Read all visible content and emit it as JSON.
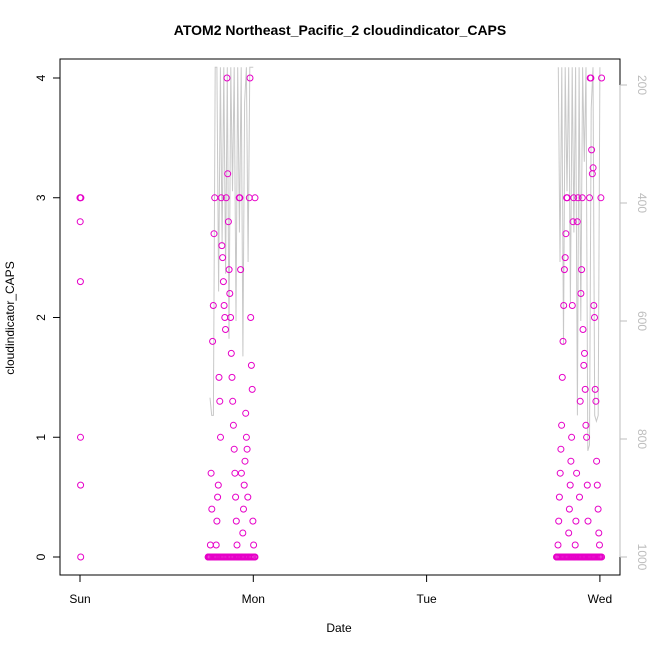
{
  "chart_data": {
    "type": "scatter",
    "title": "ATOM2 Northeast_Pacific_2 cloudindicator_CAPS",
    "xlabel": "Date",
    "ylabel": "cloudindicator_CAPS",
    "x_ticks": [
      "Sun",
      "Mon",
      "Tue",
      "Wed"
    ],
    "y_ticks": [
      "0",
      "1",
      "2",
      "3",
      "4"
    ],
    "y2_ticks": [
      "200",
      "400",
      "600",
      "800",
      "1000"
    ],
    "ylim": [
      0,
      4
    ],
    "y2lim": [
      1030,
      170
    ],
    "series_color": "#e600c8",
    "line_color": "#c8c8c8",
    "grid": false,
    "scatter_clusters": [
      {
        "x_start": 0.0,
        "x_end": 0.005,
        "values": [
          3,
          3,
          2.8,
          2.3,
          1.0,
          0.6,
          0.0,
          3
        ]
      },
      {
        "x_start": 0.74,
        "x_end": 1.01,
        "values": [
          0,
          0,
          0,
          0.1,
          0.7,
          0.4,
          1.8,
          2.1,
          2.7,
          3,
          0,
          0.1,
          0.3,
          0.5,
          0.6,
          1.5,
          1.3,
          1.0,
          3,
          2.6,
          2.5,
          2.3,
          2.1,
          2.0,
          1.9,
          3,
          4,
          3.2,
          2.8,
          2.4,
          2.2,
          2.0,
          1.7,
          1.5,
          1.3,
          1.1,
          0.9,
          0.7,
          0.5,
          0.3,
          0.1,
          0,
          0,
          3,
          3,
          2.4,
          0.7,
          0,
          0.2,
          0.4,
          0.6,
          0.8,
          1.2,
          1.0,
          0.9,
          0.5,
          0,
          3,
          4,
          2.0,
          1.6,
          1.4,
          0.3,
          0.1,
          0,
          3
        ]
      },
      {
        "x_start": 2.75,
        "x_end": 3.01,
        "values": [
          0,
          0,
          0.1,
          0.3,
          0.5,
          0.7,
          0.9,
          1.1,
          1.5,
          1.8,
          2.1,
          2.4,
          2.5,
          2.7,
          3,
          3,
          0,
          0.2,
          0.4,
          0.6,
          0.8,
          1.0,
          2.1,
          2.8,
          3,
          0,
          0.1,
          0.3,
          0.7,
          2.8,
          3,
          0,
          0.5,
          1.3,
          2.2,
          2.4,
          3,
          1.9,
          1.6,
          1.7,
          1.4,
          1.1,
          1.0,
          0.6,
          0.3,
          0,
          3,
          4,
          4,
          3.4,
          3.2,
          3.25,
          2.1,
          2.0,
          1.4,
          1.3,
          0.8,
          0.6,
          0.4,
          0.2,
          0.1,
          0,
          3,
          4
        ]
      }
    ],
    "line_segments": [
      {
        "x": [
          0.75,
          0.76,
          0.77,
          0.78,
          0.79,
          0.8,
          0.81,
          0.82,
          0.83,
          0.84,
          0.85,
          0.86,
          0.87,
          0.88,
          0.89,
          0.9,
          0.91,
          0.92,
          0.93,
          0.94,
          0.95,
          0.96,
          0.97,
          0.98,
          0.99,
          1.0
        ],
        "y": [
          730,
          760,
          760,
          170,
          170,
          550,
          170,
          470,
          170,
          520,
          170,
          630,
          170,
          380,
          170,
          600,
          170,
          450,
          170,
          660,
          230,
          170,
          500,
          170,
          170,
          170
        ]
      },
      {
        "x": [
          2.76,
          2.77,
          2.78,
          2.79,
          2.8,
          2.81,
          2.82,
          2.83,
          2.84,
          2.85,
          2.86,
          2.87,
          2.88,
          2.89,
          2.9,
          2.91,
          2.92,
          2.93,
          2.94,
          2.95,
          2.96,
          2.97,
          2.98,
          2.99,
          3.0
        ],
        "y": [
          170,
          500,
          170,
          640,
          170,
          380,
          170,
          570,
          170,
          450,
          170,
          760,
          170,
          600,
          170,
          330,
          170,
          820,
          810,
          240,
          170,
          760,
          770,
          760,
          170
        ]
      }
    ]
  }
}
